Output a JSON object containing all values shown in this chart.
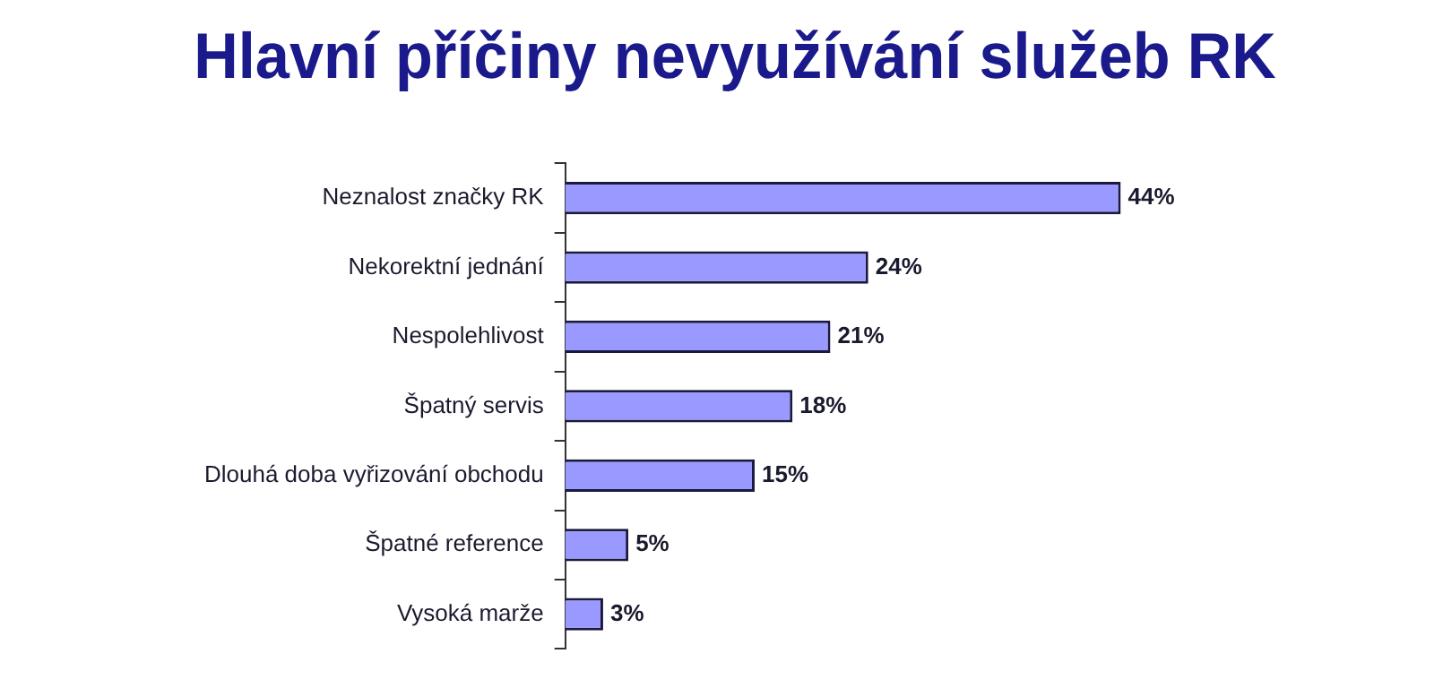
{
  "chart_data": {
    "type": "bar",
    "orientation": "horizontal",
    "title": "Hlavní příčiny nevyužívání služeb RK",
    "categories": [
      "Neznalost značky RK",
      "Nekorektní jednání",
      "Nespolehlivost",
      "Špatný servis",
      "Dlouhá doba vyřizování obchodu",
      "Špatné reference",
      "Vysoká marže"
    ],
    "values": [
      44,
      24,
      21,
      18,
      15,
      5,
      3
    ],
    "value_labels": [
      "44%",
      "24%",
      "21%",
      "18%",
      "15%",
      "5%",
      "3%"
    ],
    "color": "#9999ff",
    "grid": false,
    "legend": false
  }
}
